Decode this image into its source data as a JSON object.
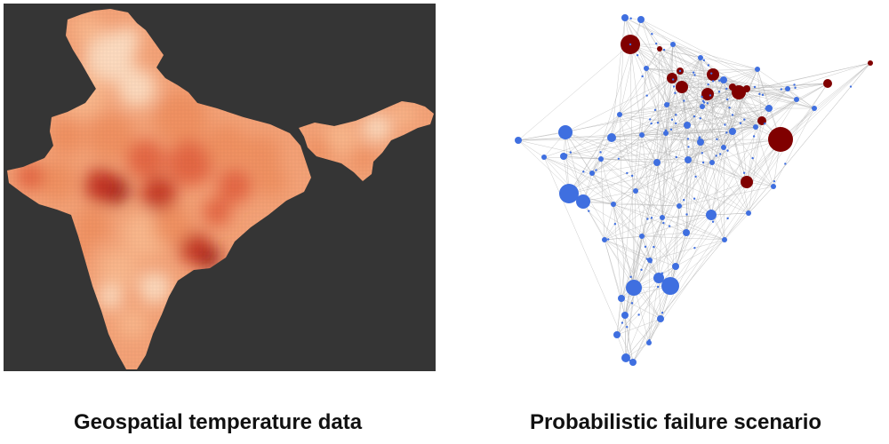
{
  "captions": {
    "left": "Geospatial temperature data",
    "right": "Probabilistic failure scenario"
  },
  "map": {
    "background_color": "#353535",
    "color_scale": [
      "#fde0c5",
      "#f9b98e",
      "#f08f5e",
      "#e2613d",
      "#c1301f",
      "#8a0b0b"
    ]
  },
  "graph": {
    "edge_color": "#b0b0b0",
    "normal_node_color": "#3f6fe0",
    "failed_node_color": "#800000"
  }
}
